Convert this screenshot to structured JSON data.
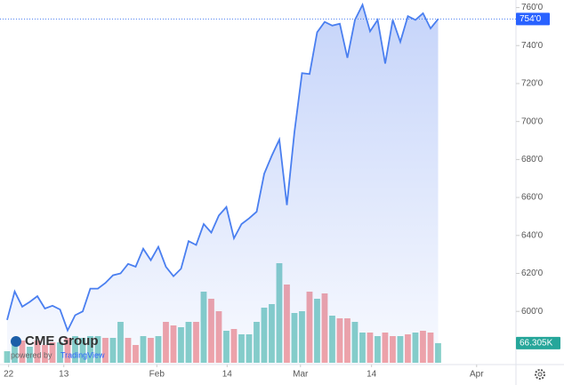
{
  "chart_data": {
    "type": "area",
    "price": {
      "color": "#4a7ff0",
      "values": [
        595.5,
        610.5,
        602.5,
        605,
        608,
        601.5,
        603,
        601,
        590,
        598,
        600,
        612,
        612,
        615,
        619,
        620,
        625,
        623.5,
        633,
        627,
        634,
        623.5,
        618.5,
        622.5,
        637,
        635,
        646,
        641.5,
        650.5,
        655,
        638.5,
        646,
        649,
        652.5,
        672.5,
        682,
        690.5,
        656,
        694.5,
        725.5,
        725,
        747,
        752.5,
        750.5,
        751.5,
        733.5,
        753.5,
        761.5,
        747.5,
        753.5,
        730.5,
        753.5,
        742,
        755.5,
        753.5,
        757,
        749,
        754
      ],
      "value_labels": [
        null,
        null,
        null,
        null,
        null,
        null,
        null,
        null,
        null,
        null,
        null,
        null,
        null,
        null,
        null,
        null,
        null,
        null,
        null,
        null,
        null,
        null,
        null,
        null,
        null,
        null,
        null,
        null,
        null,
        null,
        null,
        null,
        null,
        null,
        null,
        null,
        null,
        null,
        null,
        null,
        null,
        null,
        null,
        null,
        null,
        null,
        null,
        null,
        null,
        null,
        null,
        null,
        null,
        null,
        null,
        null,
        null,
        "754'0"
      ]
    },
    "volume": {
      "values": [
        39000,
        60000,
        75000,
        54000,
        75000,
        60000,
        69000,
        69000,
        84000,
        90000,
        84000,
        90000,
        90000,
        84000,
        84000,
        138000,
        84000,
        60000,
        90000,
        84000,
        90000,
        138000,
        126000,
        120000,
        138000,
        138000,
        240000,
        216000,
        174000,
        108000,
        114000,
        96000,
        96000,
        138000,
        186000,
        198000,
        336000,
        264000,
        168000,
        174000,
        240000,
        216000,
        234000,
        159000,
        150000,
        150000,
        138000,
        102000,
        102000,
        90000,
        102000,
        90000,
        90000,
        96000,
        102000,
        108000,
        102000,
        66305
      ],
      "colors": [
        "#86d0c8",
        "#86d0c8",
        "#f4a3a6",
        "#86d0c8",
        "#f4a3a6",
        "#f4a3a6",
        "#f4a3a6",
        "#86d0c8",
        "#f4a3a6",
        "#86d0c8",
        "#86d0c8",
        "#86d0c8",
        "#86d0c8",
        "#f4a3a6",
        "#86d0c8",
        "#86d0c8",
        "#f4a3a6",
        "#f4a3a6",
        "#86d0c8",
        "#f4a3a6",
        "#86d0c8",
        "#f4a3a6",
        "#f4a3a6",
        "#86d0c8",
        "#86d0c8",
        "#f4a3a6",
        "#86d0c8",
        "#f4a3a6",
        "#f4a3a6",
        "#86d0c8",
        "#f4a3a6",
        "#86d0c8",
        "#86d0c8",
        "#86d0c8",
        "#86d0c8",
        "#86d0c8",
        "#86d0c8",
        "#f4a3a6",
        "#86d0c8",
        "#86d0c8",
        "#f4a3a6",
        "#86d0c8",
        "#f4a3a6",
        "#86d0c8",
        "#f4a3a6",
        "#f4a3a6",
        "#86d0c8",
        "#86d0c8",
        "#f4a3a6",
        "#86d0c8",
        "#f4a3a6",
        "#f4a3a6",
        "#86d0c8",
        "#f4a3a6",
        "#86d0c8",
        "#f4a3a6",
        "#f4a3a6",
        "#86d0c8"
      ],
      "value_labels": [
        null,
        null,
        null,
        null,
        null,
        null,
        null,
        null,
        null,
        null,
        null,
        null,
        null,
        null,
        null,
        null,
        null,
        null,
        null,
        null,
        null,
        null,
        null,
        null,
        null,
        null,
        null,
        null,
        null,
        null,
        null,
        null,
        null,
        null,
        null,
        null,
        null,
        null,
        null,
        null,
        null,
        null,
        null,
        null,
        null,
        null,
        null,
        null,
        null,
        null,
        null,
        null,
        null,
        null,
        null,
        null,
        null,
        "66.305K"
      ],
      "label_color": "#26a69a"
    },
    "xlim": [
      -0.94,
      67.3
    ],
    "xticks": [
      {
        "value": 0.2,
        "label": "22"
      },
      {
        "value": 7.5,
        "label": "13"
      },
      {
        "value": 19.8,
        "label": "Feb"
      },
      {
        "value": 29.1,
        "label": "14"
      },
      {
        "value": 38.8,
        "label": "Mar"
      },
      {
        "value": 48.2,
        "label": "14"
      },
      {
        "value": 62.1,
        "label": "Apr"
      }
    ],
    "ylim": [
      572,
      764
    ],
    "yticks": [
      {
        "value": 600,
        "label": "600'0"
      },
      {
        "value": 620,
        "label": "620'0"
      },
      {
        "value": 640,
        "label": "640'0"
      },
      {
        "value": 660,
        "label": "660'0"
      },
      {
        "value": 680,
        "label": "680'0"
      },
      {
        "value": 700,
        "label": "700'0"
      },
      {
        "value": 720,
        "label": "720'0"
      },
      {
        "value": 740,
        "label": "740'0"
      },
      {
        "value": 760,
        "label": "760'0"
      }
    ]
  },
  "logo": {
    "name": "CME Group",
    "powered_by": "powered by",
    "brand": "TradingView"
  }
}
